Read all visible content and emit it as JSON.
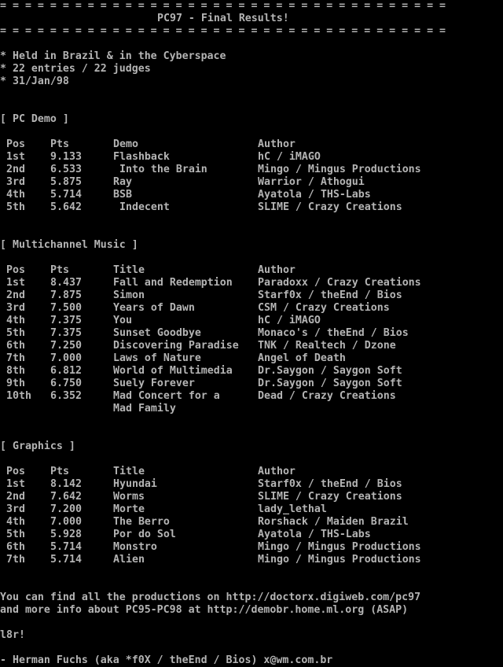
{
  "colors": {
    "background": "#000000",
    "foreground": "#b4b4b4"
  },
  "header": {
    "rule": "= = = = = = = = = = = = = = = = = = = = = = = = = = = = = = = = = = = =",
    "title": "PC97 - Final Results!"
  },
  "info": [
    "* Held in Brazil & in the Cyberspace",
    "* 22 entries / 22 judges",
    "* 31/Jan/98"
  ],
  "sections": [
    {
      "heading": "[ PC Demo ]",
      "columns": [
        "Pos",
        "Pts",
        "Demo",
        "Author"
      ],
      "rows": [
        {
          "pos": "1st",
          "pts": "9.133",
          "title": "Flashback",
          "author": "hC / iMAGO"
        },
        {
          "pos": "2nd",
          "pts": "6.533",
          "title": " Into the Brain",
          "author": "Mingo / Mingus Productions"
        },
        {
          "pos": "3rd",
          "pts": "5.875",
          "title": "Ray",
          "author": "Warrior / Athogui"
        },
        {
          "pos": "4th",
          "pts": "5.714",
          "title": "BSB",
          "author": "Ayatola / THS-Labs"
        },
        {
          "pos": "5th",
          "pts": "5.642",
          "title": " Indecent",
          "author": "SLIME / Crazy Creations"
        }
      ]
    },
    {
      "heading": "[ Multichannel Music ]",
      "columns": [
        "Pos",
        "Pts",
        "Title",
        "Author"
      ],
      "rows": [
        {
          "pos": "1st",
          "pts": "8.437",
          "title": "Fall and Redemption",
          "author": "Paradoxx / Crazy Creations"
        },
        {
          "pos": "2nd",
          "pts": "7.875",
          "title": "Simon",
          "author": "Starf0x / theEnd / Bios"
        },
        {
          "pos": "3rd",
          "pts": "7.500",
          "title": "Years of Dawn",
          "author": "CSM / Crazy Creations"
        },
        {
          "pos": "4th",
          "pts": "7.375",
          "title": "You",
          "author": "hC / iMAGO"
        },
        {
          "pos": "5th",
          "pts": "7.375",
          "title": "Sunset Goodbye",
          "author": "Monaco's / theEnd / Bios"
        },
        {
          "pos": "6th",
          "pts": "7.250",
          "title": "Discovering Paradise",
          "author": "TNK / Realtech / Dzone"
        },
        {
          "pos": "7th",
          "pts": "7.000",
          "title": "Laws of Nature",
          "author": "Angel of Death"
        },
        {
          "pos": "8th",
          "pts": "6.812",
          "title": "World of Multimedia",
          "author": "Dr.Saygon / Saygon Soft"
        },
        {
          "pos": "9th",
          "pts": "6.750",
          "title": "Suely Forever",
          "author": "Dr.Saygon / Saygon Soft"
        },
        {
          "pos": "10th",
          "pts": "6.352",
          "title": "Mad Concert for a",
          "author": "Dead / Crazy Creations"
        },
        {
          "pos": "",
          "pts": "",
          "title": "Mad Family",
          "author": ""
        }
      ]
    },
    {
      "heading": "[ Graphics ]",
      "columns": [
        "Pos",
        "Pts",
        "Title",
        "Author"
      ],
      "rows": [
        {
          "pos": "1st",
          "pts": "8.142",
          "title": "Hyundai",
          "author": "Starf0x / theEnd / Bios"
        },
        {
          "pos": "2nd",
          "pts": "7.642",
          "title": "Worms",
          "author": "SLIME / Crazy Creations"
        },
        {
          "pos": "3rd",
          "pts": "7.200",
          "title": "Morte",
          "author": "lady_lethal"
        },
        {
          "pos": "4th",
          "pts": "7.000",
          "title": "The Berro",
          "author": "Rorshack / Maiden Brazil"
        },
        {
          "pos": "5th",
          "pts": "5.928",
          "title": "Por do Sol",
          "author": "Ayatola / THS-Labs"
        },
        {
          "pos": "6th",
          "pts": "5.714",
          "title": "Monstro",
          "author": "Mingo / Mingus Productions"
        },
        {
          "pos": "7th",
          "pts": "5.714",
          "title": "Alien",
          "author": "Mingo / Mingus Productions"
        }
      ]
    }
  ],
  "footer": {
    "links_line1": "You can find all the productions on http://doctorx.digiweb.com/pc97",
    "links_line2": "and more info about PC95-PC98 at http://demobr.home.ml.org (ASAP)",
    "signoff": "l8r!",
    "signature": "- Herman Fuchs (aka *f0X / theEnd / Bios) x@wm.com.br"
  }
}
